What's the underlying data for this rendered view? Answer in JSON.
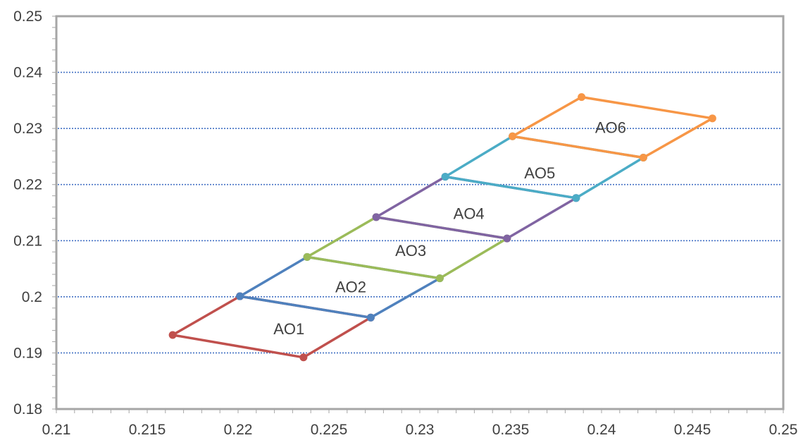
{
  "chart_data": {
    "type": "scatter",
    "title": "",
    "xlabel": "",
    "ylabel": "",
    "xlim": [
      0.21,
      0.25
    ],
    "ylim": [
      0.18,
      0.25
    ],
    "x_ticks": [
      "0.21",
      "0.215",
      "0.22",
      "0.225",
      "0.23",
      "0.235",
      "0.24",
      "0.245",
      "0.25"
    ],
    "y_ticks": [
      "0.18",
      "0.19",
      "0.2",
      "0.21",
      "0.22",
      "0.23",
      "0.24",
      "0.25"
    ],
    "grid": "horizontal dotted",
    "legend": "none",
    "series": [
      {
        "name": "AO1",
        "color": "#c0504d",
        "label_at": [
          0.2228,
          0.1943
        ],
        "points": [
          [
            0.2164,
            0.1932
          ],
          [
            0.2201,
            0.2001
          ],
          [
            0.2273,
            0.1963
          ],
          [
            0.2236,
            0.1892
          ],
          [
            0.2164,
            0.1932
          ]
        ]
      },
      {
        "name": "AO2",
        "color": "#4f81bd",
        "label_at": [
          0.2262,
          0.2018
        ],
        "points": [
          [
            0.2201,
            0.2001
          ],
          [
            0.2238,
            0.2071
          ],
          [
            0.2311,
            0.2033
          ],
          [
            0.2273,
            0.1963
          ],
          [
            0.2201,
            0.2001
          ]
        ]
      },
      {
        "name": "AO3",
        "color": "#9bbb59",
        "label_at": [
          0.2295,
          0.2083
        ],
        "points": [
          [
            0.2238,
            0.2071
          ],
          [
            0.2276,
            0.2142
          ],
          [
            0.2348,
            0.2104
          ],
          [
            0.2311,
            0.2033
          ],
          [
            0.2238,
            0.2071
          ]
        ]
      },
      {
        "name": "AO4",
        "color": "#8064a2",
        "label_at": [
          0.2327,
          0.2149
        ],
        "points": [
          [
            0.2276,
            0.2142
          ],
          [
            0.2314,
            0.2214
          ],
          [
            0.2386,
            0.2176
          ],
          [
            0.2348,
            0.2104
          ],
          [
            0.2276,
            0.2142
          ]
        ]
      },
      {
        "name": "AO5",
        "color": "#4bacc6",
        "label_at": [
          0.2366,
          0.2221
        ],
        "points": [
          [
            0.2314,
            0.2214
          ],
          [
            0.2351,
            0.2286
          ],
          [
            0.2423,
            0.2248
          ],
          [
            0.2386,
            0.2176
          ],
          [
            0.2314,
            0.2214
          ]
        ]
      },
      {
        "name": "AO6",
        "color": "#f79646",
        "label_at": [
          0.2405,
          0.2302
        ],
        "points": [
          [
            0.2351,
            0.2286
          ],
          [
            0.2389,
            0.2356
          ],
          [
            0.2461,
            0.2318
          ],
          [
            0.2423,
            0.2248
          ],
          [
            0.2351,
            0.2286
          ]
        ]
      }
    ]
  }
}
